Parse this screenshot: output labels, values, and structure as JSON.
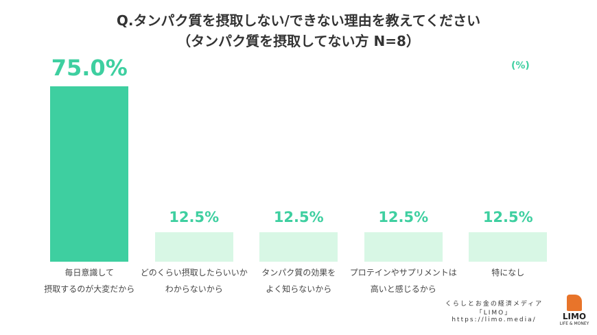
{
  "chart_data": {
    "type": "bar",
    "title": "Q.タンパク質を摂取しない/できない理由を教えてください",
    "subtitle": "（タンパク質を摂取してない方 N=8）",
    "unit_label": "(%)",
    "categories": [
      "毎日意識して\n摂取するのが大変だから",
      "どのくらい摂取したらいいか\nわからないから",
      "タンパク質の効果を\nよく知らないから",
      "プロテインやサプリメントは\n高いと感じるから",
      "特になし"
    ],
    "values": [
      75.0,
      12.5,
      12.5,
      12.5,
      12.5
    ],
    "value_labels": [
      "75.0%",
      "12.5%",
      "12.5%",
      "12.5%",
      "12.5%"
    ],
    "colors": [
      "#3ecfa0",
      "#d8f7e5",
      "#d8f7e5",
      "#d8f7e5",
      "#d8f7e5"
    ],
    "footer": {
      "tagline": "くらしとお金の経済メディア",
      "brand": "「LIMO」",
      "url": "https://limo.media/",
      "logo": "LIMO",
      "logo_sub": "LIFE & MONEY"
    }
  }
}
